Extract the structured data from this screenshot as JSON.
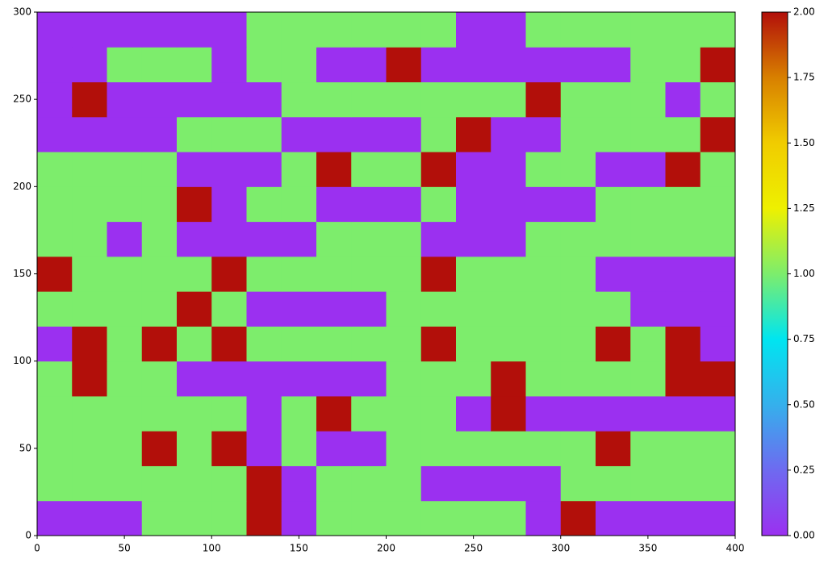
{
  "chart_data": {
    "type": "heatmap",
    "xlim": [
      0,
      400
    ],
    "ylim": [
      0,
      300
    ],
    "xticks": [
      0,
      50,
      100,
      150,
      200,
      250,
      300,
      350,
      400
    ],
    "yticks": [
      0,
      50,
      100,
      150,
      200,
      250,
      300
    ],
    "clim": [
      0,
      2
    ],
    "colorbar_ticks": [
      {
        "value": 0,
        "label": "0.00"
      },
      {
        "value": 0.25,
        "label": "0.25"
      },
      {
        "value": 0.5,
        "label": "0.50"
      },
      {
        "value": 0.75,
        "label": "0.75"
      },
      {
        "value": 1,
        "label": "1.00"
      },
      {
        "value": 1.25,
        "label": "1.25"
      },
      {
        "value": 1.5,
        "label": "1.50"
      },
      {
        "value": 1.75,
        "label": "1.75"
      },
      {
        "value": 2,
        "label": "2.00"
      }
    ],
    "colormap": [
      "#9b30f0",
      "#6e6af0",
      "#35b0ec",
      "#00e5f0",
      "#7ded6c",
      "#eef000",
      "#f0cc00",
      "#d88000",
      "#b20f0a"
    ],
    "z": [
      [
        0,
        0,
        0,
        1,
        1,
        1,
        2,
        0,
        1,
        1,
        1,
        1,
        1,
        1,
        0,
        2,
        0,
        0,
        0,
        0
      ],
      [
        1,
        1,
        1,
        1,
        1,
        1,
        2,
        0,
        1,
        1,
        1,
        0,
        0,
        0,
        0,
        1,
        1,
        1,
        1,
        1
      ],
      [
        1,
        1,
        1,
        2,
        1,
        2,
        0,
        1,
        0,
        0,
        1,
        1,
        1,
        1,
        1,
        1,
        2,
        1,
        1,
        1
      ],
      [
        1,
        1,
        1,
        1,
        1,
        1,
        0,
        1,
        2,
        1,
        1,
        1,
        0,
        2,
        0,
        0,
        0,
        0,
        0,
        0
      ],
      [
        1,
        2,
        1,
        1,
        0,
        0,
        0,
        0,
        0,
        0,
        1,
        1,
        1,
        2,
        1,
        1,
        1,
        1,
        2,
        2
      ],
      [
        0,
        2,
        1,
        2,
        1,
        2,
        1,
        1,
        1,
        1,
        1,
        2,
        1,
        1,
        1,
        1,
        2,
        1,
        2,
        0
      ],
      [
        1,
        1,
        1,
        1,
        2,
        1,
        0,
        0,
        0,
        0,
        1,
        1,
        1,
        1,
        1,
        1,
        1,
        0,
        0,
        0
      ],
      [
        2,
        1,
        1,
        1,
        1,
        2,
        1,
        1,
        1,
        1,
        1,
        2,
        1,
        1,
        1,
        1,
        0,
        0,
        0,
        0
      ],
      [
        1,
        1,
        0,
        1,
        0,
        0,
        0,
        0,
        1,
        1,
        1,
        0,
        0,
        0,
        1,
        1,
        1,
        1,
        1,
        1
      ],
      [
        1,
        1,
        1,
        1,
        2,
        0,
        1,
        1,
        0,
        0,
        0,
        1,
        0,
        0,
        0,
        0,
        1,
        1,
        1,
        1
      ],
      [
        1,
        1,
        1,
        1,
        0,
        0,
        0,
        1,
        2,
        1,
        1,
        2,
        0,
        0,
        1,
        1,
        0,
        0,
        2,
        1
      ],
      [
        0,
        0,
        0,
        0,
        1,
        1,
        1,
        0,
        0,
        0,
        0,
        1,
        2,
        0,
        0,
        1,
        1,
        1,
        1,
        2
      ],
      [
        0,
        2,
        0,
        0,
        0,
        0,
        0,
        1,
        1,
        1,
        1,
        1,
        1,
        1,
        2,
        1,
        1,
        1,
        0,
        1
      ],
      [
        0,
        0,
        1,
        1,
        1,
        0,
        1,
        1,
        0,
        0,
        2,
        0,
        0,
        0,
        0,
        0,
        0,
        1,
        1,
        2
      ],
      [
        0,
        0,
        0,
        0,
        0,
        0,
        1,
        1,
        1,
        1,
        1,
        1,
        0,
        0,
        1,
        1,
        1,
        1,
        1,
        1
      ]
    ]
  }
}
